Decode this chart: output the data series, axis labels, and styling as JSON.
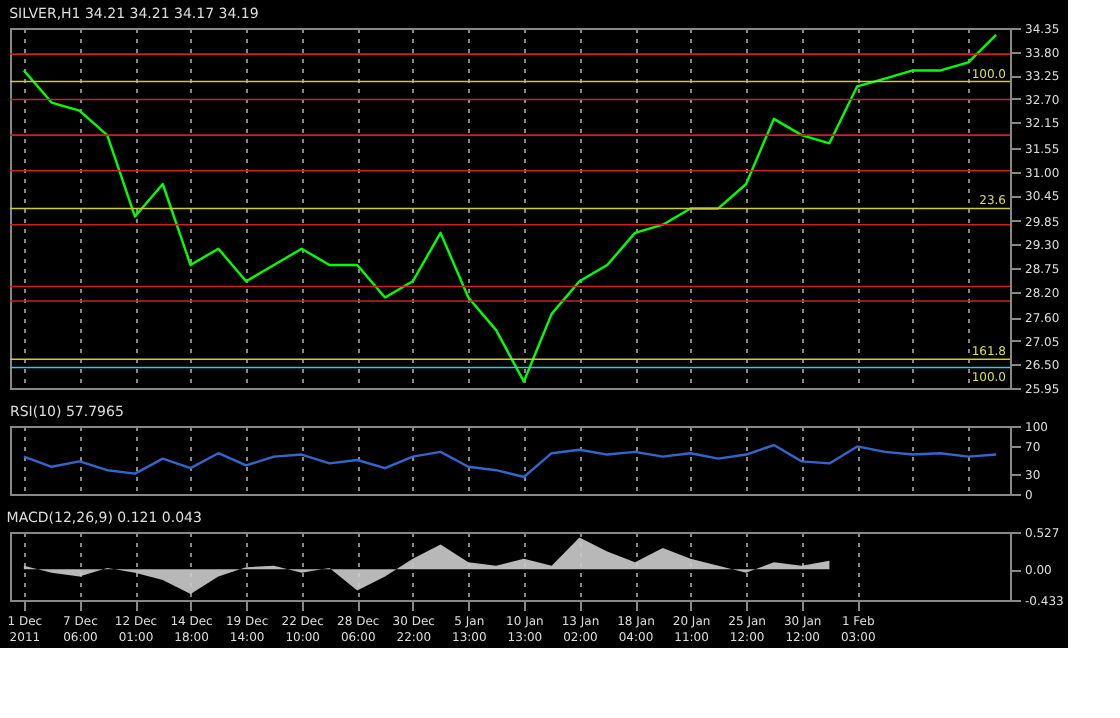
{
  "chart_data": [
    {
      "type": "line",
      "title": "SILVER,H1  34.21 34.21 34.17 34.19",
      "categories": [
        null,
        null,
        null,
        null,
        null,
        null,
        null,
        null,
        null,
        null,
        null,
        null,
        null,
        null,
        null,
        null,
        null,
        null,
        null,
        null,
        null,
        null,
        null,
        null,
        null,
        null,
        null,
        null,
        null,
        null,
        null,
        null,
        null,
        null,
        null,
        null
      ],
      "series": [
        {
          "color": "#00ff00",
          "values": [
            33.36,
            32.61,
            32.42,
            31.85,
            29.95,
            30.71,
            28.82,
            29.2,
            28.44,
            28.82,
            29.2,
            28.82,
            28.82,
            28.06,
            28.44,
            29.57,
            28.06,
            27.3,
            26.1,
            27.68,
            28.44,
            28.82,
            29.57,
            29.76,
            30.14,
            30.14,
            30.71,
            32.23,
            31.85,
            31.66,
            32.99,
            33.17,
            33.36,
            33.36,
            33.55,
            34.19
          ]
        }
      ],
      "ylim": [
        25.95,
        34.35
      ],
      "yticks": [
        25.95,
        {
          "value": 26.5,
          "label": "26.50"
        },
        27.05,
        {
          "value": 27.6,
          "label": "27.60"
        },
        {
          "value": 28.2,
          "label": "28.20"
        },
        28.75,
        {
          "value": 29.3,
          "label": "29.30"
        },
        29.85,
        30.45,
        {
          "value": 31,
          "label": "31.00"
        },
        31.55,
        32.15,
        {
          "value": 32.7,
          "label": "32.70"
        },
        33.25,
        {
          "value": 33.8,
          "label": "33.80"
        },
        34.35
      ],
      "ref_lines": [
        {
          "axis": "y",
          "value": 33.74,
          "color": "#cc2222"
        },
        {
          "axis": "y",
          "value": 33.1,
          "color": "#cccc33"
        },
        {
          "axis": "y",
          "value": 32.68,
          "color": "#cc2222"
        },
        {
          "axis": "y",
          "value": 31.85,
          "color": "#cc2222"
        },
        {
          "axis": "y",
          "value": 31.02,
          "color": "#cc2222"
        },
        {
          "axis": "y",
          "value": 30.14,
          "color": "#cccc33"
        },
        {
          "axis": "y",
          "value": 29.76,
          "color": "#cc2222"
        },
        {
          "axis": "y",
          "value": 28.32,
          "color": "#cc2222"
        },
        {
          "axis": "y",
          "value": 27.98,
          "color": "#cc2222"
        },
        {
          "axis": "y",
          "value": 26.62,
          "color": "#cccc33"
        },
        {
          "axis": "y",
          "value": 26.43,
          "color": "#33cccc"
        }
      ],
      "annotations": [
        {
          "text": "100.0",
          "y": 33.1
        },
        {
          "text": "23.6",
          "y": 30.14
        },
        {
          "text": "161.8",
          "y": 26.62
        },
        {
          "text": "100.0",
          "y": 26.43
        }
      ],
      "grid": "x",
      "tick_labels": "y"
    },
    {
      "type": "line",
      "title": "RSI(10) 57.7965",
      "categories": [
        null,
        null,
        null,
        null,
        null,
        null,
        null,
        null,
        null,
        null,
        null,
        null,
        null,
        null,
        null,
        null,
        null,
        null,
        null,
        null,
        null,
        null,
        null,
        null,
        null,
        null,
        null,
        null,
        null,
        null,
        null,
        null,
        null,
        null,
        null,
        null
      ],
      "series": [
        {
          "color": "#3366cc",
          "values": [
            55,
            40,
            48,
            35,
            30,
            52,
            38,
            60,
            42,
            55,
            58,
            45,
            50,
            38,
            55,
            62,
            40,
            35,
            25,
            60,
            65,
            58,
            62,
            55,
            60,
            52,
            58,
            72,
            48,
            45,
            70,
            62,
            58,
            60,
            55,
            58
          ]
        }
      ],
      "ylim": [
        0,
        100
      ],
      "yticks": [
        0,
        30,
        70,
        100
      ],
      "grid": "x",
      "tick_labels": "y"
    },
    {
      "type": "area",
      "title": "MACD(12,26,9) 0.121 0.043",
      "categories": [
        "1 Dec 2011",
        null,
        "7 Dec 06:00",
        null,
        "12 Dec 01:00",
        null,
        "14 Dec 18:00",
        null,
        "19 Dec 14:00",
        null,
        "22 Dec 10:00",
        null,
        "28 Dec 06:00",
        null,
        "30 Dec 22:00",
        null,
        "5 Jan 13:00",
        null,
        "10 Jan 13:00",
        null,
        "13 Jan 02:00",
        null,
        "18 Jan 04:00",
        null,
        "20 Jan 11:00",
        null,
        "25 Jan 12:00",
        null,
        "30 Jan 12:00",
        null,
        "1 Feb 03:00",
        null,
        null,
        null,
        null,
        null
      ],
      "series": [
        {
          "color": "#cccccc",
          "values": [
            0.05,
            -0.05,
            -0.1,
            0.02,
            -0.05,
            -0.15,
            -0.35,
            -0.1,
            0.03,
            0.05,
            -0.05,
            0.02,
            -0.3,
            -0.1,
            0.15,
            0.35,
            0.1,
            0.05,
            0.15,
            0.05,
            0.45,
            0.25,
            0.1,
            0.3,
            0.15,
            0.05,
            -0.05,
            0.1,
            0.05,
            0.12,
            null,
            null,
            null,
            null,
            null,
            null
          ]
        }
      ],
      "ylim": [
        -0.433,
        0.527
      ],
      "yticks": [
        -0.433,
        {
          "value": 0,
          "label": "0.00"
        },
        0.527
      ],
      "grid": "x"
    }
  ]
}
